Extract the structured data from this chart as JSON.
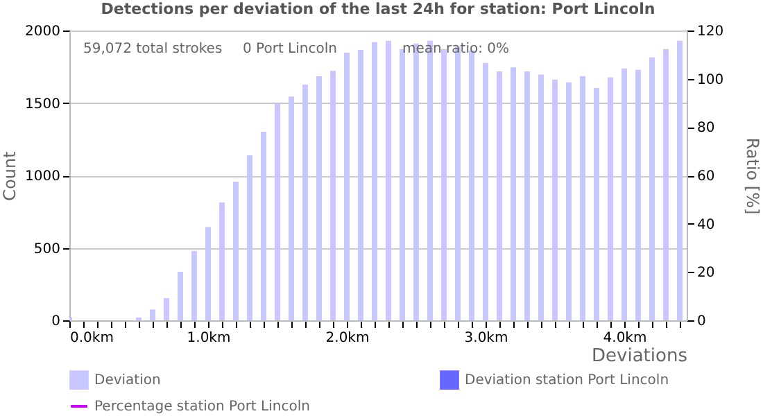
{
  "chart_data": {
    "type": "bar",
    "title": "Detections per deviation of the last 24h for station: Port Lincoln",
    "xlabel": "Deviations",
    "ylabel": "Count",
    "y2label": "Ratio [%]",
    "x": [
      0.0,
      0.1,
      0.2,
      0.3,
      0.4,
      0.5,
      0.6,
      0.7,
      0.8,
      0.9,
      1.0,
      1.1,
      1.2,
      1.3,
      1.4,
      1.5,
      1.6,
      1.7,
      1.8,
      1.9,
      2.0,
      2.1,
      2.2,
      2.3,
      2.4,
      2.5,
      2.6,
      2.7,
      2.8,
      2.9,
      3.0,
      3.1,
      3.2,
      3.3,
      3.4,
      3.5,
      3.6,
      3.7,
      3.8,
      3.9,
      4.0,
      4.1,
      4.2,
      4.3,
      4.4
    ],
    "series": [
      {
        "name": "Deviation",
        "color": "#c8c8ff",
        "values": [
          20,
          0,
          0,
          0,
          0,
          20,
          75,
          153,
          335,
          478,
          644,
          813,
          957,
          1139,
          1301,
          1493,
          1544,
          1627,
          1684,
          1723,
          1847,
          1866,
          1920,
          1930,
          1872,
          1910,
          1930,
          1872,
          1888,
          1862,
          1776,
          1718,
          1747,
          1718,
          1696,
          1661,
          1642,
          1686,
          1603,
          1677,
          1738,
          1728,
          1814,
          1872,
          1930
        ]
      },
      {
        "name": "Deviation station Port Lincoln",
        "color": "#6666ff",
        "values": [
          null,
          null,
          null,
          null,
          null,
          null,
          null,
          null,
          null,
          null,
          null,
          null,
          null,
          null,
          null,
          null,
          null,
          null,
          null,
          null,
          null,
          null,
          null,
          null,
          null,
          null,
          null,
          null,
          null,
          null,
          null,
          null,
          null,
          null,
          null,
          null,
          null,
          null,
          null,
          null,
          null,
          null,
          null,
          null,
          null
        ]
      },
      {
        "name": "Percentage station Port Lincoln",
        "type": "line",
        "axis": "y2",
        "color": "#cc00ff",
        "values": [
          null,
          null,
          null,
          null,
          null,
          null,
          null,
          null,
          null,
          null,
          null,
          null,
          null,
          null,
          null,
          null,
          null,
          null,
          null,
          null,
          null,
          null,
          null,
          null,
          null,
          null,
          null,
          null,
          null,
          null,
          null,
          null,
          null,
          null,
          null,
          null,
          null,
          null,
          null,
          null,
          null,
          null,
          null,
          null,
          null
        ]
      }
    ],
    "xlim": [
      0,
      4.45
    ],
    "xticks": [
      {
        "value": 0,
        "label": "0.0km"
      },
      {
        "value": 0.1,
        "label": null
      },
      {
        "value": 0.2,
        "label": null
      },
      {
        "value": 0.3,
        "label": null
      },
      {
        "value": 0.4,
        "label": null
      },
      {
        "value": 0.5,
        "label": null
      },
      {
        "value": 0.6,
        "label": null
      },
      {
        "value": 0.7,
        "label": null
      },
      {
        "value": 0.8,
        "label": null
      },
      {
        "value": 0.9,
        "label": null
      },
      {
        "value": 1,
        "label": "1.0km"
      },
      {
        "value": 1.1,
        "label": null
      },
      {
        "value": 1.2,
        "label": null
      },
      {
        "value": 1.3,
        "label": null
      },
      {
        "value": 1.4,
        "label": null
      },
      {
        "value": 1.5,
        "label": null
      },
      {
        "value": 1.6,
        "label": null
      },
      {
        "value": 1.7,
        "label": null
      },
      {
        "value": 1.8,
        "label": null
      },
      {
        "value": 1.9,
        "label": null
      },
      {
        "value": 2,
        "label": "2.0km"
      },
      {
        "value": 2.1,
        "label": null
      },
      {
        "value": 2.2,
        "label": null
      },
      {
        "value": 2.3,
        "label": null
      },
      {
        "value": 2.4,
        "label": null
      },
      {
        "value": 2.5,
        "label": null
      },
      {
        "value": 2.6,
        "label": null
      },
      {
        "value": 2.7,
        "label": null
      },
      {
        "value": 2.8,
        "label": null
      },
      {
        "value": 2.9,
        "label": null
      },
      {
        "value": 3,
        "label": "3.0km"
      },
      {
        "value": 3.1,
        "label": null
      },
      {
        "value": 3.2,
        "label": null
      },
      {
        "value": 3.3,
        "label": null
      },
      {
        "value": 3.4,
        "label": null
      },
      {
        "value": 3.5,
        "label": null
      },
      {
        "value": 3.6,
        "label": null
      },
      {
        "value": 3.7,
        "label": null
      },
      {
        "value": 3.8,
        "label": null
      },
      {
        "value": 3.9,
        "label": null
      },
      {
        "value": 4,
        "label": "4.0km"
      },
      {
        "value": 4.1,
        "label": null
      },
      {
        "value": 4.2,
        "label": null
      },
      {
        "value": 4.3,
        "label": null
      },
      {
        "value": 4.4,
        "label": null
      }
    ],
    "ylim": [
      0,
      2000
    ],
    "yticks": [
      0,
      500,
      1000,
      1500,
      2000
    ],
    "y2lim": [
      0,
      120
    ],
    "y2ticks": [
      0,
      20,
      40,
      60,
      80,
      100,
      120
    ],
    "grid": "y",
    "legend": "bottom",
    "annotations": [
      "59,072 total strokes",
      "0 Port Lincoln",
      "mean ratio: 0%"
    ]
  }
}
